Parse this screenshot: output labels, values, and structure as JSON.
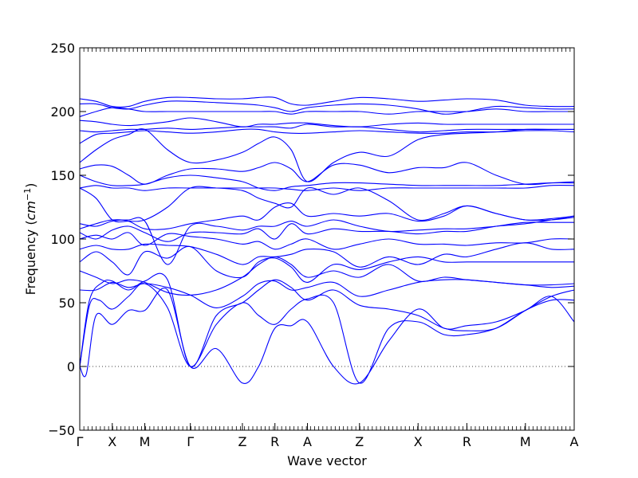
{
  "chart_data": {
    "type": "line",
    "title": "",
    "xlabel": "Wave vector",
    "ylabel": "Frequency (cm⁻¹)",
    "ylabel_prefix": "Frequency (",
    "ylabel_unit": "cm",
    "ylabel_exp": "−1",
    "ylabel_suffix": ")",
    "ylim": [
      -50,
      250
    ],
    "yticks": [
      -50,
      0,
      50,
      100,
      150,
      200,
      250
    ],
    "xlim": [
      0,
      15.2
    ],
    "high_symmetry_points": [
      {
        "label": "Γ",
        "x": 0.0
      },
      {
        "label": "X",
        "x": 1.0
      },
      {
        "label": "M",
        "x": 2.0
      },
      {
        "label": "Γ",
        "x": 3.4
      },
      {
        "label": "Z",
        "x": 5.0
      },
      {
        "label": "R",
        "x": 6.0
      },
      {
        "label": "A",
        "x": 7.0
      },
      {
        "label": "Z",
        "x": 8.6
      },
      {
        "label": "X",
        "x": 10.4
      },
      {
        "label": "R",
        "x": 11.9
      },
      {
        "label": "M",
        "x": 13.7
      },
      {
        "label": "A",
        "x": 15.2
      }
    ],
    "zero_line": {
      "y": 0,
      "style": "dotted"
    },
    "grid": false,
    "legend": "none",
    "series_color": "#0000ff",
    "series": [
      {
        "x": [
          0,
          0.2,
          0.5,
          1,
          1.5,
          2,
          2.7,
          3.4,
          4.2,
          5,
          5.5,
          6,
          6.5,
          7,
          7.8,
          8.6,
          9.5,
          10.4,
          11.2,
          11.9,
          12.8,
          13.7,
          14.5,
          15.2
        ],
        "values": [
          0,
          -6,
          40,
          33,
          44,
          44,
          60,
          0,
          14,
          -13,
          0,
          30,
          32,
          35,
          0,
          -13,
          20,
          45,
          30,
          32,
          35,
          44,
          55,
          35
        ]
      },
      {
        "x": [
          0,
          0.3,
          0.6,
          1,
          1.5,
          2,
          2.7,
          3.4,
          4.2,
          5,
          5.5,
          6,
          6.5,
          7,
          7.8,
          8.6,
          9.5,
          10.4,
          11.2,
          11.9,
          12.8,
          13.7,
          14.5,
          15.2
        ],
        "values": [
          0,
          48,
          52,
          45,
          55,
          65,
          46,
          0,
          33,
          50,
          40,
          33,
          45,
          53,
          50,
          -13,
          30,
          35,
          25,
          25,
          30,
          44,
          52,
          52
        ]
      },
      {
        "x": [
          0,
          0.3,
          0.7,
          1,
          1.5,
          2,
          2.7,
          3.4,
          4.2,
          5,
          5.5,
          6,
          6.5,
          7,
          7.8,
          8.6,
          9.5,
          10.4,
          11.2,
          11.9,
          12.8,
          13.7,
          14.5,
          15.2
        ],
        "values": [
          0,
          52,
          66,
          67,
          60,
          67,
          68,
          0,
          40,
          50,
          60,
          68,
          62,
          52,
          60,
          48,
          45,
          40,
          30,
          28,
          30,
          44,
          55,
          60
        ]
      },
      {
        "x": [
          0,
          0.5,
          1,
          1.5,
          2,
          2.7,
          3.4,
          4.2,
          5,
          5.5,
          6,
          6.5,
          7,
          7.8,
          8.6,
          9.5,
          10.4,
          11.2,
          11.9,
          12.8,
          13.7,
          14.5,
          15.2
        ],
        "values": [
          60,
          60,
          66,
          62,
          65,
          62,
          56,
          46,
          55,
          65,
          67,
          60,
          62,
          66,
          55,
          60,
          66,
          68,
          68,
          66,
          64,
          64,
          65
        ]
      },
      {
        "x": [
          0,
          0.5,
          1,
          1.5,
          2,
          2.7,
          3.4,
          4.2,
          5,
          5.5,
          6,
          6.5,
          7,
          7.8,
          8.6,
          9.5,
          10.4,
          11.2,
          11.9,
          12.8,
          13.7,
          14.5,
          15.2
        ],
        "values": [
          75,
          70,
          65,
          68,
          66,
          58,
          56,
          60,
          70,
          80,
          86,
          80,
          70,
          75,
          70,
          80,
          67,
          70,
          68,
          66,
          64,
          62,
          63
        ]
      },
      {
        "x": [
          0,
          0.5,
          1,
          1.5,
          2,
          2.7,
          3.4,
          4.2,
          5,
          5.5,
          6,
          6.5,
          7,
          7.8,
          8.6,
          9.5,
          10.4,
          11.2,
          11.9,
          12.8,
          13.7,
          14.5,
          15.2
        ],
        "values": [
          82,
          90,
          82,
          72,
          90,
          85,
          94,
          75,
          70,
          82,
          85,
          78,
          66,
          80,
          76,
          82,
          86,
          82,
          82,
          82,
          82,
          82,
          82
        ]
      },
      {
        "x": [
          0,
          0.5,
          1,
          1.5,
          2,
          2.7,
          3.4,
          4.2,
          5,
          5.5,
          6,
          6.5,
          7,
          7.8,
          8.6,
          9.5,
          10.4,
          11.2,
          11.9,
          12.8,
          13.7,
          14.5,
          15.2
        ],
        "values": [
          92,
          95,
          92,
          92,
          96,
          95,
          94,
          88,
          80,
          86,
          86,
          88,
          92,
          90,
          78,
          86,
          80,
          88,
          86,
          92,
          97,
          92,
          92
        ]
      },
      {
        "x": [
          0,
          0.5,
          1,
          1.5,
          2,
          2.7,
          3.4,
          4.2,
          5,
          5.5,
          6,
          6.5,
          7,
          7.8,
          8.6,
          9.5,
          10.4,
          11.2,
          11.9,
          12.8,
          13.7,
          14.5,
          15.2
        ],
        "values": [
          100,
          103,
          100,
          105,
          95,
          104,
          102,
          100,
          96,
          98,
          92,
          96,
          100,
          92,
          96,
          100,
          96,
          96,
          95,
          97,
          97,
          100,
          100
        ]
      },
      {
        "x": [
          0,
          0.5,
          1,
          1.5,
          2,
          2.7,
          3.4,
          4.2,
          5,
          5.5,
          6,
          6.5,
          7,
          7.8,
          8.6,
          9.5,
          10.4,
          11.2,
          11.9,
          12.8,
          13.7,
          14.5,
          15.2
        ],
        "values": [
          105,
          100,
          107,
          110,
          105,
          98,
          105,
          105,
          104,
          108,
          100,
          112,
          104,
          108,
          106,
          106,
          104,
          106,
          106,
          110,
          113,
          113,
          113
        ]
      },
      {
        "x": [
          0,
          0.5,
          1,
          1.5,
          2,
          2.7,
          3.4,
          4.2,
          5,
          5.5,
          6,
          6.5,
          7,
          7.8,
          8.6,
          9.5,
          10.4,
          11.2,
          11.9,
          12.8,
          13.7,
          14.5,
          15.2
        ],
        "values": [
          112,
          110,
          114,
          115,
          114,
          80,
          110,
          110,
          107,
          110,
          110,
          114,
          110,
          115,
          110,
          106,
          107,
          108,
          108,
          110,
          112,
          115,
          118
        ]
      },
      {
        "x": [
          0,
          0.5,
          1,
          1.5,
          2,
          2.7,
          3.4,
          4.2,
          5,
          5.5,
          6,
          6.5,
          7,
          7.8,
          8.6,
          9.5,
          10.4,
          11.2,
          11.9,
          12.8,
          13.7,
          14.5,
          15.2
        ],
        "values": [
          108,
          112,
          115,
          114,
          108,
          108,
          112,
          115,
          118,
          115,
          125,
          128,
          118,
          120,
          118,
          120,
          114,
          118,
          126,
          120,
          115,
          115,
          117
        ]
      },
      {
        "x": [
          0,
          0.5,
          1,
          1.5,
          2,
          2.7,
          3.4,
          4.2,
          5,
          5.5,
          6,
          6.5,
          7,
          7.8,
          8.6,
          9.5,
          10.4,
          11.2,
          11.9,
          12.8,
          13.7,
          14.5,
          15.2
        ],
        "values": [
          140,
          132,
          115,
          114,
          115,
          125,
          140,
          140,
          138,
          132,
          128,
          125,
          140,
          135,
          140,
          130,
          115,
          120,
          126,
          120,
          115,
          116,
          118
        ]
      },
      {
        "x": [
          0,
          0.5,
          1,
          1.5,
          2,
          2.7,
          3.4,
          4.2,
          5,
          5.5,
          6,
          6.5,
          7,
          7.8,
          8.6,
          9.5,
          10.4,
          11.2,
          11.9,
          12.8,
          13.7,
          14.5,
          15.2
        ],
        "values": [
          140,
          142,
          140,
          140,
          138,
          140,
          140,
          140,
          140,
          140,
          140,
          139,
          138,
          140,
          138,
          140,
          140,
          140,
          140,
          140,
          140,
          142,
          142
        ]
      },
      {
        "x": [
          0,
          0.5,
          1,
          1.5,
          2,
          2.7,
          3.4,
          4.2,
          5,
          5.5,
          6,
          6.5,
          7,
          7.8,
          8.6,
          9.5,
          10.4,
          11.2,
          11.9,
          12.8,
          13.7,
          14.5,
          15.2
        ],
        "values": [
          150,
          145,
          142,
          142,
          143,
          148,
          150,
          148,
          145,
          140,
          138,
          141,
          142,
          144,
          144,
          143,
          142,
          142,
          142,
          142,
          143,
          144,
          144
        ]
      },
      {
        "x": [
          0,
          0.5,
          1,
          1.5,
          2,
          2.7,
          3.4,
          4.2,
          5,
          5.5,
          6,
          6.5,
          7,
          7.8,
          8.6,
          9.5,
          10.4,
          11.2,
          11.9,
          12.8,
          13.7,
          14.5,
          15.2
        ],
        "values": [
          155,
          158,
          157,
          150,
          143,
          150,
          155,
          155,
          153,
          156,
          160,
          155,
          145,
          158,
          158,
          152,
          156,
          156,
          160,
          150,
          143,
          144,
          145
        ]
      },
      {
        "x": [
          0,
          0.5,
          1,
          1.5,
          2,
          2.7,
          3.4,
          4.2,
          5,
          5.5,
          6,
          6.5,
          7,
          7.8,
          8.6,
          9.5,
          10.4,
          11.2,
          11.9,
          12.8,
          13.7,
          14.5,
          15.2
        ],
        "values": [
          160,
          170,
          178,
          182,
          186,
          170,
          160,
          162,
          168,
          175,
          180,
          170,
          145,
          160,
          168,
          165,
          178,
          182,
          183,
          184,
          186,
          186,
          186
        ]
      },
      {
        "x": [
          0,
          0.5,
          1,
          1.5,
          2,
          2.7,
          3.4,
          4.2,
          5,
          5.5,
          6,
          6.5,
          7,
          7.8,
          8.6,
          9.5,
          10.4,
          11.2,
          11.9,
          12.8,
          13.7,
          14.5,
          15.2
        ],
        "values": [
          175,
          182,
          183,
          184,
          185,
          184,
          183,
          184,
          186,
          186,
          184,
          183,
          183,
          184,
          185,
          184,
          183,
          183,
          184,
          184,
          185,
          185,
          184
        ]
      },
      {
        "x": [
          0,
          0.5,
          1,
          1.5,
          2,
          2.7,
          3.4,
          4.2,
          5,
          5.5,
          6,
          6.5,
          7,
          7.8,
          8.6,
          9.5,
          10.4,
          11.2,
          11.9,
          12.8,
          13.7,
          14.5,
          15.2
        ],
        "values": [
          185,
          184,
          185,
          186,
          186,
          187,
          186,
          187,
          188,
          188,
          188,
          187,
          190,
          188,
          188,
          186,
          184,
          185,
          186,
          186,
          186,
          186,
          186
        ]
      },
      {
        "x": [
          0,
          0.5,
          1,
          1.5,
          2,
          2.7,
          3.4,
          4.2,
          5,
          5.5,
          6,
          6.5,
          7,
          7.8,
          8.6,
          9.5,
          10.4,
          11.2,
          11.9,
          12.8,
          13.7,
          14.5,
          15.2
        ],
        "values": [
          193,
          192,
          190,
          189,
          190,
          192,
          195,
          192,
          188,
          190,
          190,
          191,
          191,
          189,
          188,
          190,
          191,
          190,
          190,
          190,
          190,
          190,
          190
        ]
      },
      {
        "x": [
          0,
          0.5,
          1,
          1.5,
          2,
          2.7,
          3.4,
          4.2,
          5,
          5.5,
          6,
          6.5,
          7,
          7.8,
          8.6,
          9.5,
          10.4,
          11.2,
          11.9,
          12.8,
          13.7,
          14.5,
          15.2
        ],
        "values": [
          196,
          200,
          203,
          202,
          200,
          200,
          200,
          200,
          200,
          200,
          200,
          198,
          200,
          200,
          200,
          198,
          200,
          200,
          200,
          202,
          200,
          200,
          200
        ]
      },
      {
        "x": [
          0,
          0.5,
          1,
          1.5,
          2,
          2.7,
          3.4,
          4.2,
          5,
          5.5,
          6,
          6.5,
          7,
          7.8,
          8.6,
          9.5,
          10.4,
          11.2,
          11.9,
          12.8,
          13.7,
          14.5,
          15.2
        ],
        "values": [
          206,
          206,
          203,
          202,
          205,
          208,
          208,
          207,
          206,
          205,
          203,
          200,
          203,
          205,
          206,
          205,
          202,
          198,
          200,
          204,
          203,
          202,
          202
        ]
      },
      {
        "x": [
          0,
          0.5,
          1,
          1.5,
          2,
          2.7,
          3.4,
          4.2,
          5,
          5.5,
          6,
          6.5,
          7,
          7.8,
          8.6,
          9.5,
          10.4,
          11.2,
          11.9,
          12.8,
          13.7,
          14.5,
          15.2
        ],
        "values": [
          210,
          208,
          204,
          204,
          208,
          211,
          211,
          210,
          210,
          211,
          211,
          206,
          205,
          208,
          211,
          210,
          208,
          209,
          210,
          209,
          205,
          204,
          204
        ]
      }
    ]
  }
}
